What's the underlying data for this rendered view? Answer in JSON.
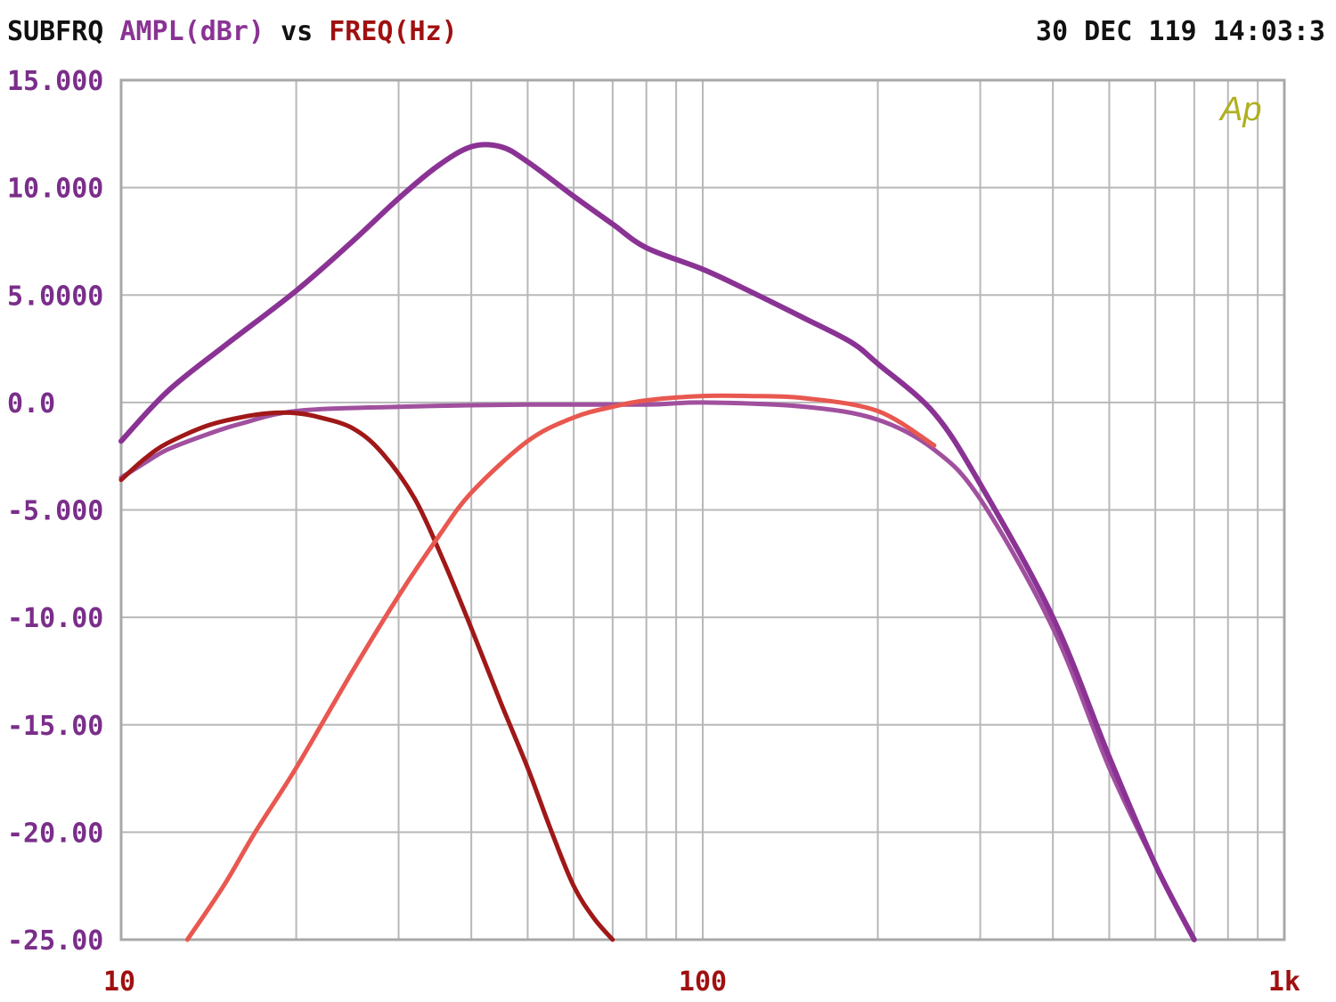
{
  "header": {
    "name": "SUBFRQ",
    "yquantity": "AMPL(dBr)",
    "vs": "vs",
    "xquantity": "FREQ(Hz)",
    "datetime": "30 DEC 119 14:03:3"
  },
  "logo": "Ap",
  "colors": {
    "ytick": "#7a2e8a",
    "xtick": "#a01010",
    "grid": "#b8b8b8",
    "logo": "#b0b020"
  },
  "chart_data": {
    "type": "line",
    "xscale": "log",
    "xlim": [
      10,
      1000
    ],
    "ylim": [
      -25,
      15
    ],
    "grid": true,
    "x_ticks": [
      {
        "value": 10,
        "label": "10"
      },
      {
        "value": 100,
        "label": "100"
      },
      {
        "value": 1000,
        "label": "1k"
      }
    ],
    "y_ticks": [
      {
        "value": 15,
        "label": "15.000"
      },
      {
        "value": 10,
        "label": "10.000"
      },
      {
        "value": 5,
        "label": "5.0000"
      },
      {
        "value": 0,
        "label": "0.0"
      },
      {
        "value": -5,
        "label": "-5.000"
      },
      {
        "value": -10,
        "label": "-10.00"
      },
      {
        "value": -15,
        "label": "-15.00"
      },
      {
        "value": -20,
        "label": "-20.00"
      },
      {
        "value": -25,
        "label": "-25.00"
      }
    ],
    "series": [
      {
        "color": "#a0509e",
        "width": 5,
        "x": [
          10,
          11,
          12,
          14,
          16,
          20,
          30,
          50,
          80,
          100,
          150,
          200,
          250,
          300,
          400,
          500,
          600,
          700
        ],
        "y": [
          -3.5,
          -2.8,
          -2.2,
          -1.5,
          -1.0,
          -0.4,
          -0.2,
          -0.1,
          -0.1,
          0,
          -0.2,
          -0.8,
          -2.2,
          -4.5,
          -10.5,
          -17.0,
          -21.5,
          -25
        ]
      },
      {
        "color": "#a01818",
        "width": 5,
        "x": [
          10,
          11,
          12,
          14,
          16,
          18,
          20,
          22,
          25,
          28,
          32,
          36,
          40,
          45,
          50,
          55,
          60,
          65,
          70
        ],
        "y": [
          -3.6,
          -2.6,
          -1.9,
          -1.1,
          -0.7,
          -0.5,
          -0.5,
          -0.7,
          -1.2,
          -2.3,
          -4.5,
          -7.5,
          -10.5,
          -14.0,
          -17.0,
          -20.0,
          -22.5,
          -24.0,
          -25
        ]
      },
      {
        "color": "#e85850",
        "width": 5,
        "x": [
          13,
          15,
          17,
          20,
          25,
          30,
          35,
          40,
          50,
          60,
          70,
          80,
          100,
          120,
          150,
          200,
          250
        ],
        "y": [
          -25,
          -22.5,
          -20.0,
          -17.0,
          -12.5,
          -9.0,
          -6.3,
          -4.2,
          -1.8,
          -0.7,
          -0.2,
          0.1,
          0.3,
          0.3,
          0.2,
          -0.4,
          -2.0
        ]
      },
      {
        "color": "#8a3394",
        "width": 6,
        "x": [
          10,
          12,
          15,
          20,
          25,
          30,
          35,
          40,
          45,
          50,
          60,
          70,
          80,
          100,
          120,
          150,
          180,
          200,
          250,
          300,
          400,
          500,
          600,
          700
        ],
        "y": [
          -1.8,
          0.5,
          2.6,
          5.2,
          7.5,
          9.5,
          11.0,
          11.9,
          11.9,
          11.2,
          9.6,
          8.3,
          7.2,
          6.2,
          5.2,
          3.9,
          2.8,
          1.8,
          -0.5,
          -3.8,
          -10.0,
          -16.5,
          -21.5,
          -25
        ]
      }
    ]
  }
}
